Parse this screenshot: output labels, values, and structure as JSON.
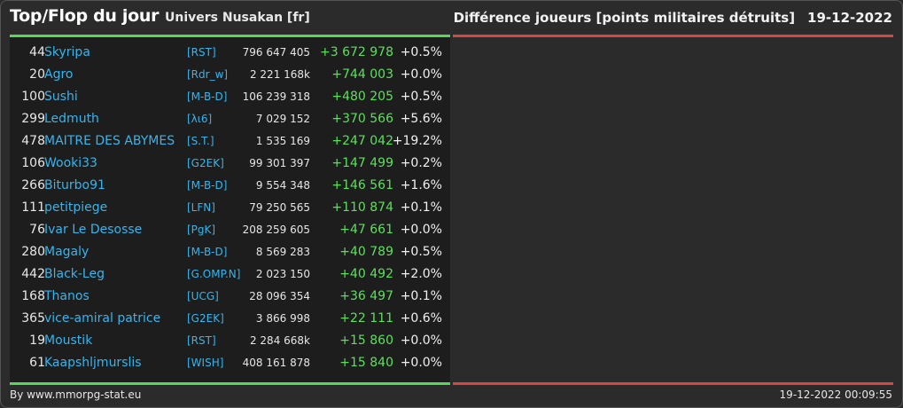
{
  "header": {
    "title": "Top/Flop du jour",
    "universe": "Univers Nusakan [fr]",
    "metric": "Différence joueurs [points militaires détruits]",
    "date": "19-12-2022"
  },
  "colors": {
    "top": "#55d855",
    "flop": "#d8463f",
    "link": "#38b4ec",
    "gain": "#5ce05c"
  },
  "top_rows": [
    {
      "rank": "44",
      "name": "Skyripa",
      "tag": "[RST]",
      "total": "796 647 405",
      "diff": "+3 672 978",
      "pct": "+0.5%"
    },
    {
      "rank": "20",
      "name": "Agro",
      "tag": "[Rdr_w]",
      "total": "2 221 168k",
      "diff": "+744 003",
      "pct": "+0.0%"
    },
    {
      "rank": "100",
      "name": "Sushi",
      "tag": "[M-B-D]",
      "total": "106 239 318",
      "diff": "+480 205",
      "pct": "+0.5%"
    },
    {
      "rank": "299",
      "name": "Ledmuth",
      "tag": "[λι6]",
      "total": "7 029 152",
      "diff": "+370 566",
      "pct": "+5.6%"
    },
    {
      "rank": "478",
      "name": "MAITRE DES ABYMES",
      "tag": "[S.T.]",
      "total": "1 535 169",
      "diff": "+247 042",
      "pct": "+19.2%"
    },
    {
      "rank": "106",
      "name": "Wooki33",
      "tag": "[G2EK]",
      "total": "99 301 397",
      "diff": "+147 499",
      "pct": "+0.2%"
    },
    {
      "rank": "266",
      "name": "Biturbo91",
      "tag": "[M-B-D]",
      "total": "9 554 348",
      "diff": "+146 561",
      "pct": "+1.6%"
    },
    {
      "rank": "111",
      "name": "petitpiege",
      "tag": "[LFN]",
      "total": "79 250 565",
      "diff": "+110 874",
      "pct": "+0.1%"
    },
    {
      "rank": "76",
      "name": "Ivar Le Desosse",
      "tag": "[PgK]",
      "total": "208 259 605",
      "diff": "+47 661",
      "pct": "+0.0%"
    },
    {
      "rank": "280",
      "name": "Magaly",
      "tag": "[M-B-D]",
      "total": "8 569 283",
      "diff": "+40 789",
      "pct": "+0.5%"
    },
    {
      "rank": "442",
      "name": "Black-Leg",
      "tag": "[G.OMP.N]",
      "total": "2 023 150",
      "diff": "+40 492",
      "pct": "+2.0%"
    },
    {
      "rank": "168",
      "name": "Thanos",
      "tag": "[UCG]",
      "total": "28 096 354",
      "diff": "+36 497",
      "pct": "+0.1%"
    },
    {
      "rank": "365",
      "name": "vice-amiral patrice",
      "tag": "[G2EK]",
      "total": "3 866 998",
      "diff": "+22 111",
      "pct": "+0.6%"
    },
    {
      "rank": "19",
      "name": "Moustik",
      "tag": "[RST]",
      "total": "2 284 668k",
      "diff": "+15 860",
      "pct": "+0.0%"
    },
    {
      "rank": "61",
      "name": "Kaapshljmurslis",
      "tag": "[WISH]",
      "total": "408 161 878",
      "diff": "+15 840",
      "pct": "+0.0%"
    }
  ],
  "footer": {
    "source": "By www.mmorpg-stat.eu",
    "timestamp": "19-12-2022 00:09:55"
  }
}
